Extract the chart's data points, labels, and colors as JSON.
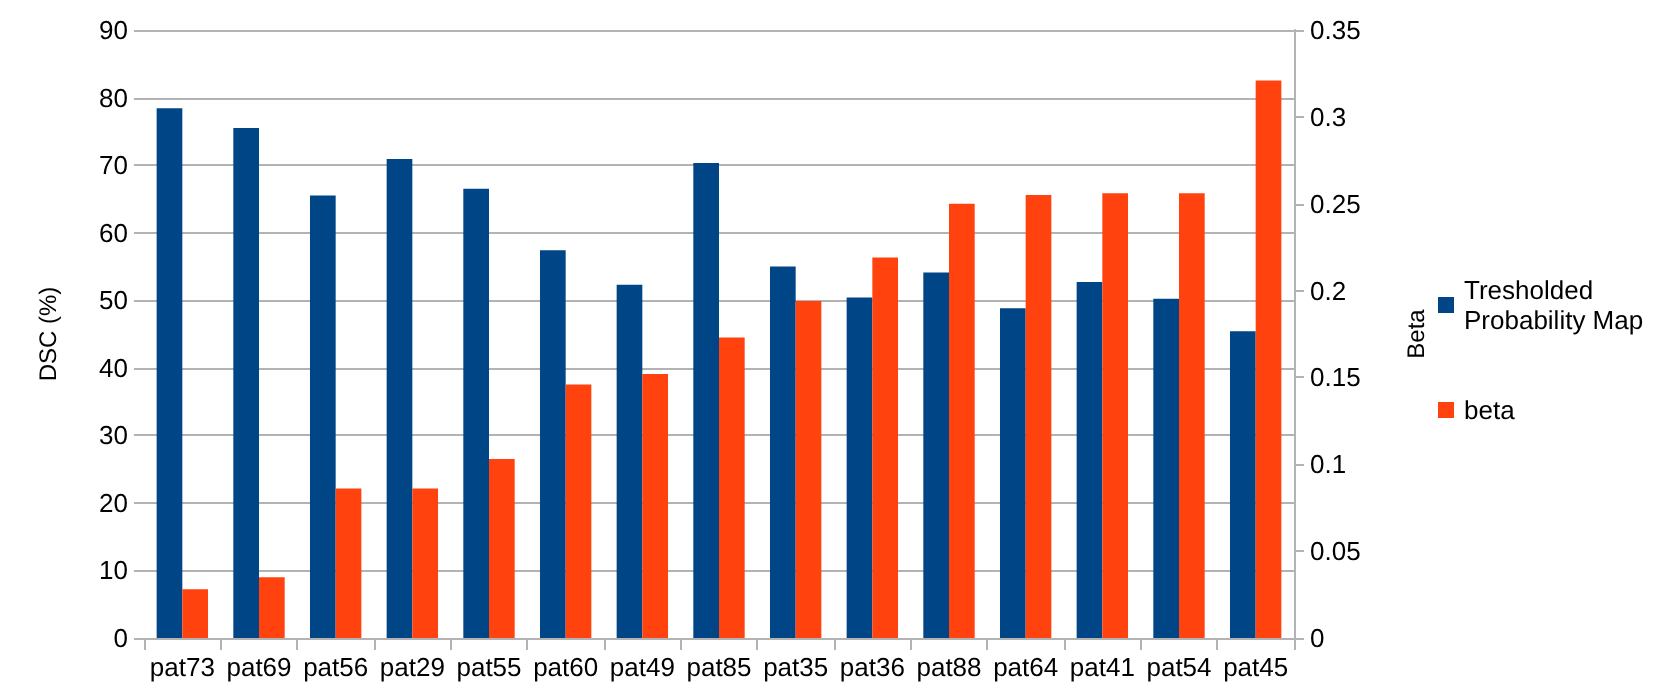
{
  "chart_data": {
    "type": "bar",
    "categories": [
      "pat73",
      "pat69",
      "pat56",
      "pat29",
      "pat55",
      "pat60",
      "pat49",
      "pat85",
      "pat35",
      "pat36",
      "pat88",
      "pat64",
      "pat41",
      "pat54",
      "pat45"
    ],
    "ylabel": "DSC (%)",
    "y2label": "Beta",
    "series": [
      {
        "name": "Tresholded Probability Map",
        "color": "#004586",
        "values": [
          78.4,
          75.5,
          65.5,
          70.9,
          66.5,
          57.4,
          52.3,
          70.3,
          55.0,
          50.4,
          54.1,
          48.8,
          52.7,
          50.2,
          45.4
        ]
      },
      {
        "name": "beta",
        "color": "#ff420e",
        "axis": "y2",
        "values": [
          0.028,
          0.035,
          0.086,
          0.086,
          0.103,
          0.146,
          0.152,
          0.173,
          0.194,
          0.219,
          0.25,
          0.255,
          0.256,
          0.256,
          0.321
        ]
      }
    ],
    "ylim": [
      0,
      90
    ],
    "yticks": [
      0,
      10,
      20,
      30,
      40,
      50,
      60,
      70,
      80,
      90
    ],
    "y2lim": [
      0,
      0.35
    ],
    "y2ticks": [
      0,
      0.05,
      0.1,
      0.15,
      0.2,
      0.25,
      0.3,
      0.35
    ],
    "grid": "y",
    "legend": "right"
  }
}
